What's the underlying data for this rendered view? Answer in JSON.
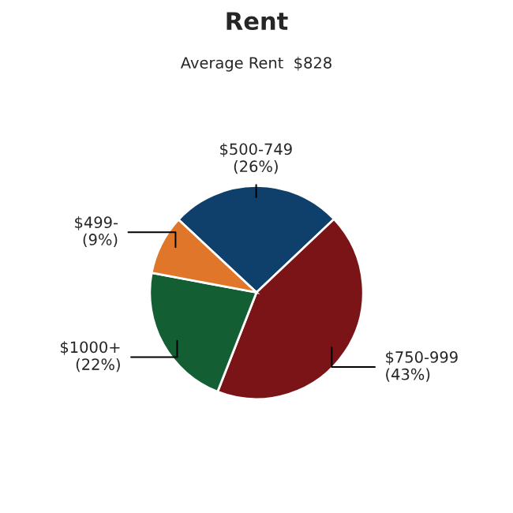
{
  "chart_data": {
    "type": "pie",
    "title": "Rent",
    "subtitle": "Average Rent  $828",
    "categories": [
      "$500-749",
      "$750-999",
      "$1000+",
      "$499-"
    ],
    "values": [
      26,
      43,
      22,
      9
    ],
    "value_labels": [
      "(26%)",
      "(43%)",
      "(22%)",
      "(9%)"
    ],
    "colors": [
      "#0f406c",
      "#7a1416",
      "#145e34",
      "#e07629"
    ],
    "legend": false
  }
}
